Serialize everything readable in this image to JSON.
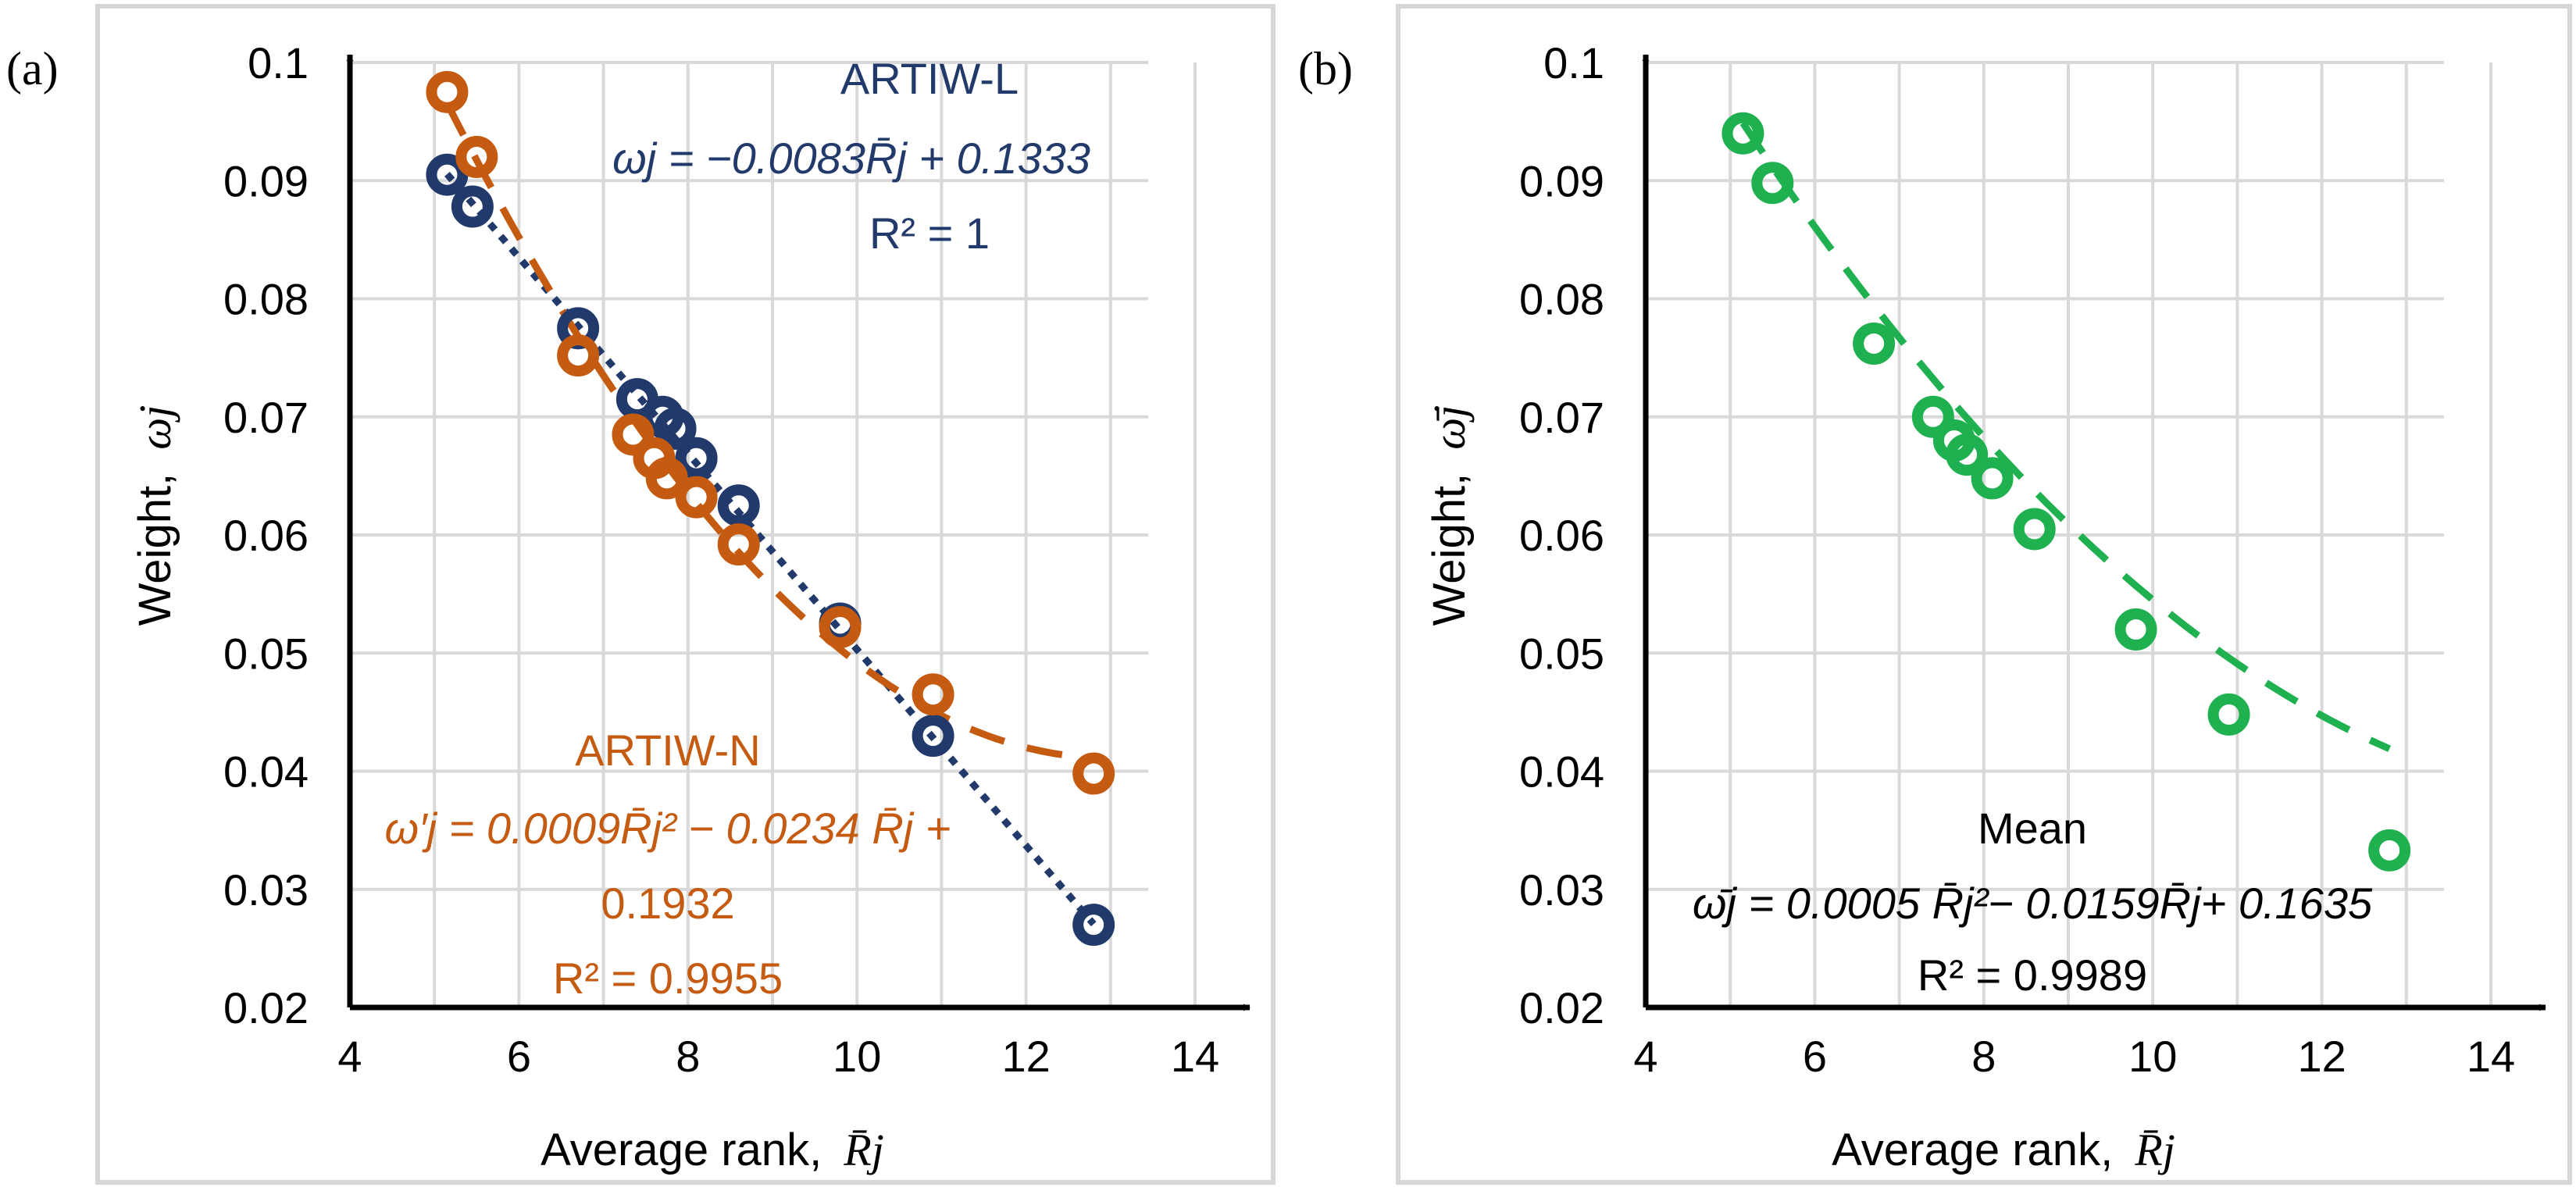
{
  "colors": {
    "linear": "#213a6b",
    "nonlinear": "#c55a11",
    "mean": "#1fb04f",
    "grid": "#d9d9d9",
    "axis": "#000000"
  },
  "chart_data": [
    {
      "panel_label": "(a)",
      "type": "scatter",
      "xlabel": "Average rank,",
      "xlabel_symbol": "R̄j",
      "ylabel": "Weight,",
      "ylabel_symbol": "ωj",
      "xlim": [
        4,
        14
      ],
      "ylim": [
        0.02,
        0.1
      ],
      "xticks": [
        "4",
        "6",
        "8",
        "10",
        "12",
        "14"
      ],
      "yticks": [
        "0.02",
        "0.03",
        "0.04",
        "0.05",
        "0.06",
        "0.07",
        "0.08",
        "0.09",
        "0.1"
      ],
      "series": [
        {
          "name": "ARTIW-L",
          "color": "#213a6b",
          "line_style": "dotted",
          "x": [
            5.15,
            5.45,
            6.7,
            7.4,
            7.7,
            7.85,
            8.1,
            8.6,
            9.8,
            10.9,
            12.8
          ],
          "y": [
            0.0905,
            0.0878,
            0.0775,
            0.0715,
            0.07,
            0.069,
            0.0665,
            0.0625,
            0.0525,
            0.043,
            0.027
          ],
          "fit": {
            "kind": "linear",
            "a": -0.0083,
            "b": 0.1333
          },
          "equation": "ωj = −0.0083R̄j + 0.1333",
          "r2": "R² = 1"
        },
        {
          "name": "ARTIW-N",
          "color": "#c55a11",
          "line_style": "dashed",
          "x": [
            5.15,
            5.5,
            6.7,
            7.35,
            7.6,
            7.75,
            8.1,
            8.6,
            9.8,
            10.9,
            12.8
          ],
          "y": [
            0.0975,
            0.092,
            0.0752,
            0.0685,
            0.0665,
            0.0648,
            0.0632,
            0.0592,
            0.0522,
            0.0465,
            0.0398
          ],
          "fit": {
            "kind": "quadratic",
            "a": 0.0009,
            "b": -0.0234,
            "c": 0.1932
          },
          "equation_line1": "ω′j = 0.0009R̄j² − 0.0234 R̄j +",
          "equation_line2": "0.1932",
          "r2": "R² = 0.9955"
        }
      ]
    },
    {
      "panel_label": "(b)",
      "type": "scatter",
      "xlabel": "Average rank,",
      "xlabel_symbol": "R̄j",
      "ylabel": "Weight,",
      "ylabel_symbol": "ω̄j",
      "xlim": [
        4,
        14
      ],
      "ylim": [
        0.02,
        0.1
      ],
      "xticks": [
        "4",
        "6",
        "8",
        "10",
        "12",
        "14"
      ],
      "yticks": [
        "0.02",
        "0.03",
        "0.04",
        "0.05",
        "0.06",
        "0.07",
        "0.08",
        "0.09",
        "0.1"
      ],
      "series": [
        {
          "name": "Mean",
          "color": "#1fb04f",
          "line_style": "dashed",
          "x": [
            5.15,
            5.5,
            6.7,
            7.4,
            7.65,
            7.8,
            8.1,
            8.6,
            9.8,
            10.9,
            12.8
          ],
          "y": [
            0.094,
            0.0898,
            0.0762,
            0.07,
            0.068,
            0.0668,
            0.0648,
            0.0605,
            0.052,
            0.0448,
            0.0333
          ],
          "fit": {
            "kind": "quadratic",
            "a": 0.0005,
            "b": -0.0159,
            "c": 0.1635
          },
          "equation": "ω̄j = 0.0005 R̄j²− 0.0159R̄j+ 0.1635",
          "r2": "R² = 0.9989"
        }
      ]
    }
  ]
}
